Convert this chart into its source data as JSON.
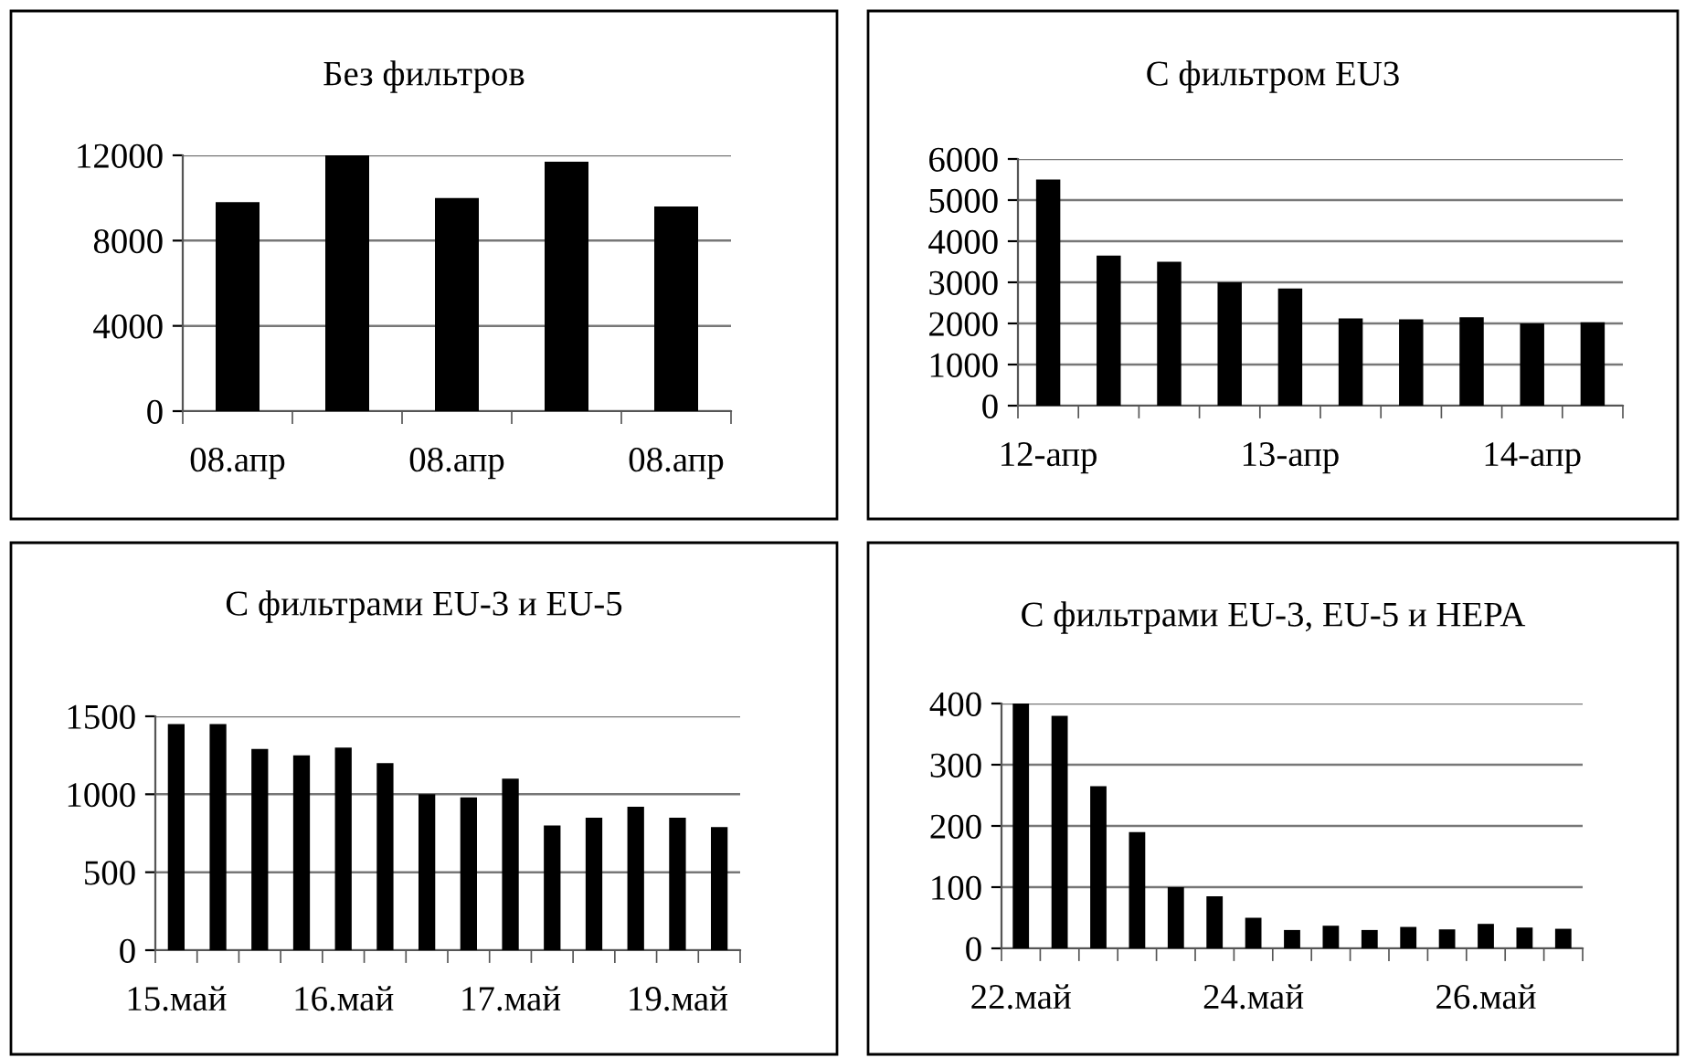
{
  "chart_data": [
    {
      "type": "bar",
      "title": "Без фильтров",
      "categories": [
        "08.апр",
        null,
        "08.апр",
        null,
        "08.апр"
      ],
      "values": [
        9800,
        12000,
        10000,
        11700,
        9600
      ],
      "color": "#000000",
      "ylim": [
        0,
        12000
      ],
      "yticks": [
        0,
        4000,
        8000,
        12000
      ],
      "grid": "y"
    },
    {
      "type": "bar",
      "title": "С фильтром EU3",
      "categories": [
        "12-апр",
        null,
        null,
        null,
        "13-апр",
        null,
        null,
        null,
        "14-апр",
        null
      ],
      "values": [
        5500,
        3650,
        3500,
        3000,
        2850,
        2120,
        2100,
        2150,
        2000,
        2030
      ],
      "color": "#000000",
      "ylim": [
        0,
        6000
      ],
      "yticks": [
        0,
        1000,
        2000,
        3000,
        4000,
        5000,
        6000
      ],
      "grid": "y"
    },
    {
      "type": "bar",
      "title": "С фильтрами EU-3 и EU-5",
      "categories": [
        "15.май",
        null,
        null,
        null,
        "16.май",
        null,
        null,
        null,
        "17.май",
        null,
        null,
        null,
        "19.май",
        null
      ],
      "values": [
        1450,
        1450,
        1290,
        1250,
        1300,
        1200,
        1000,
        980,
        1100,
        800,
        850,
        920,
        850,
        790
      ],
      "color": "#000000",
      "ylim": [
        0,
        1500
      ],
      "yticks": [
        0,
        500,
        1000,
        1500
      ],
      "grid": "y"
    },
    {
      "type": "bar",
      "title": "С фильтрами EU-3, EU-5 и HEPA",
      "categories": [
        "22.май",
        null,
        null,
        null,
        null,
        null,
        "24.май",
        null,
        null,
        null,
        null,
        null,
        "26.май",
        null,
        null
      ],
      "values": [
        400,
        380,
        265,
        190,
        100,
        85,
        50,
        30,
        37,
        30,
        35,
        31,
        40,
        34,
        32
      ],
      "color": "#000000",
      "ylim": [
        0,
        400
      ],
      "yticks": [
        0,
        100,
        200,
        300,
        400
      ],
      "grid": "y"
    }
  ]
}
